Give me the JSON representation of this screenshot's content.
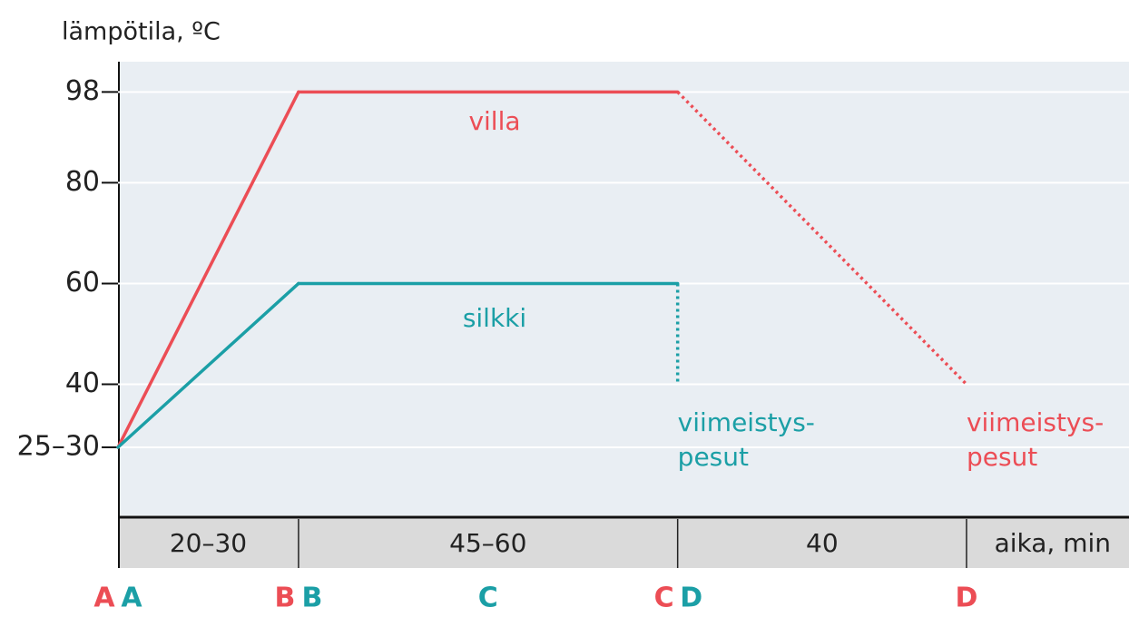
{
  "chart_data": {
    "type": "line",
    "title": "lämpötila, ºC",
    "ylim": [
      14,
      104
    ],
    "yticks": [
      {
        "value": 27.5,
        "label": "25–30"
      },
      40,
      60,
      80,
      98
    ],
    "xlim": [
      0,
      140
    ],
    "boundaries": [
      0,
      25,
      77.5,
      117.5
    ],
    "segments": [
      "20–30",
      "45–60",
      "40"
    ],
    "x_label": "aika, min",
    "grid": true,
    "series": [
      {
        "name": "villa",
        "color": "#ec4d55",
        "x": [
          0,
          25,
          77.5,
          117.5
        ],
        "values": [
          27.5,
          98,
          98,
          40
        ],
        "styles": [
          "solid",
          "solid",
          "dotted"
        ],
        "phases": [
          "A",
          "B",
          "C",
          "D"
        ],
        "phase_x": [
          0,
          25,
          77.5,
          117.5
        ],
        "end_label": [
          "viimeistys-",
          "pesut"
        ]
      },
      {
        "name": "silkki",
        "color": "#1b9fa6",
        "x": [
          0,
          25,
          77.5,
          77.5
        ],
        "values": [
          27.5,
          60,
          60,
          40
        ],
        "styles": [
          "solid",
          "solid",
          "dotted"
        ],
        "phases": [
          "A",
          "B",
          "C",
          "D"
        ],
        "phase_x": [
          0,
          25,
          51.25,
          77.5
        ],
        "end_label": [
          "viimeistys-",
          "pesut"
        ]
      }
    ]
  }
}
